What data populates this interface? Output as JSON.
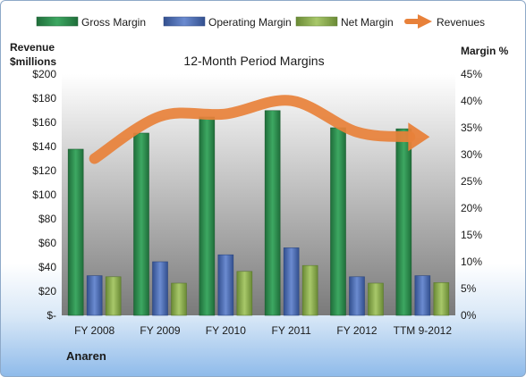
{
  "company": "Anaren",
  "chart_data": {
    "type": "bar",
    "title": "12-Month Period Margins",
    "categories": [
      "FY 2008",
      "FY 2009",
      "FY 2010",
      "FY 2011",
      "FY 2012",
      "TTM 9-2012"
    ],
    "y_left": {
      "label_line1": "Revenue",
      "label_line2": "$millions",
      "ylim": [
        0,
        200
      ],
      "ticks": [
        0,
        20,
        40,
        60,
        80,
        100,
        120,
        140,
        160,
        180,
        200
      ],
      "tick_labels": [
        "$-",
        "$20",
        "$40",
        "$60",
        "$80",
        "$100",
        "$120",
        "$140",
        "$160",
        "$180",
        "$200"
      ]
    },
    "y_right": {
      "label": "Margin %",
      "ylim": [
        0,
        45
      ],
      "ticks": [
        0,
        5,
        10,
        15,
        20,
        25,
        30,
        35,
        40,
        45
      ],
      "tick_labels": [
        "0%",
        "5%",
        "10%",
        "15%",
        "20%",
        "25%",
        "30%",
        "35%",
        "40%",
        "45%"
      ]
    },
    "series": [
      {
        "name": "Gross Margin",
        "type": "bar",
        "axis": "right",
        "color": "#2e8b4e",
        "values": [
          31,
          34,
          37,
          38.2,
          35,
          34.8
        ]
      },
      {
        "name": "Operating Margin",
        "type": "bar",
        "axis": "right",
        "color": "#4f6fb8",
        "values": [
          7.4,
          10,
          11.3,
          12.6,
          7.2,
          7.4
        ]
      },
      {
        "name": "Net Margin",
        "type": "bar",
        "axis": "right",
        "color": "#8fb24f",
        "values": [
          7.2,
          6,
          8.2,
          9.3,
          6,
          6.1
        ]
      },
      {
        "name": "Revenues",
        "type": "line",
        "axis": "left",
        "color": "#e8813a",
        "values": [
          130,
          165,
          167,
          178,
          152,
          148
        ]
      }
    ],
    "legend_position": "top",
    "grid": false
  }
}
